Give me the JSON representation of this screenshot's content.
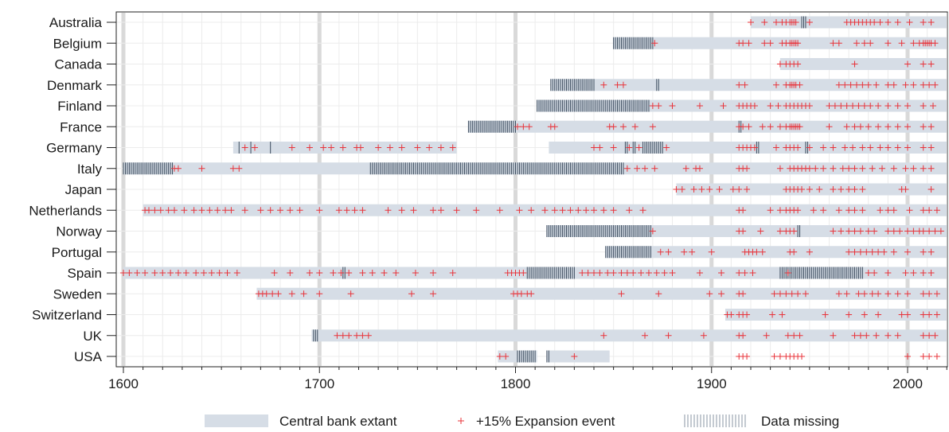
{
  "chart_data": {
    "type": "timeline",
    "title": "",
    "xlabel": "",
    "ylabel": "",
    "xlim": [
      1598,
      2022
    ],
    "x_ticks": [
      1600,
      1700,
      1800,
      1900,
      2000
    ],
    "grid": true,
    "legend_position": "bottom",
    "legend": {
      "extant": "Central bank extant",
      "expansion": "+15% Expansion event",
      "missing": "Data missing"
    },
    "colors": {
      "extant": "#d6dde6",
      "expansion": "#e8333a",
      "missing": "#3a4a5c",
      "century_line": "#d9d9d9",
      "grid": "#ececec"
    },
    "countries": [
      {
        "name": "Australia",
        "extant": [
          [
            1920,
            2022
          ]
        ],
        "missing": [
          [
            1946,
            1948
          ]
        ],
        "expansion_years": [
          1920,
          1927,
          1933,
          1936,
          1938,
          1940,
          1941,
          1942,
          1943,
          1950,
          1969,
          1971,
          1973,
          1975,
          1977,
          1979,
          1981,
          1983,
          1986,
          1990,
          1995,
          2001,
          2008,
          2012,
          2020
        ]
      },
      {
        "name": "Belgium",
        "extant": [
          [
            1850,
            2022
          ]
        ],
        "missing": [
          [
            1850,
            1870
          ]
        ],
        "expansion_years": [
          1871,
          1914,
          1916,
          1919,
          1927,
          1930,
          1936,
          1938,
          1940,
          1941,
          1942,
          1943,
          1944,
          1962,
          1965,
          1974,
          1978,
          1981,
          1990,
          1997,
          2003,
          2006,
          2008,
          2009,
          2010,
          2011,
          2012,
          2014,
          2020
        ]
      },
      {
        "name": "Canada",
        "extant": [
          [
            1935,
            2022
          ]
        ],
        "missing": [],
        "expansion_years": [
          1935,
          1938,
          1940,
          1942,
          1944,
          1973,
          2000,
          2008,
          2012,
          2020
        ]
      },
      {
        "name": "Denmark",
        "extant": [
          [
            1818,
            2022
          ]
        ],
        "missing": [
          [
            1818,
            1840
          ],
          [
            1872,
            1873
          ]
        ],
        "expansion_years": [
          1845,
          1852,
          1855,
          1914,
          1917,
          1933,
          1938,
          1940,
          1941,
          1942,
          1943,
          1945,
          1965,
          1968,
          1971,
          1974,
          1977,
          1980,
          1984,
          1990,
          1993,
          1999,
          2003,
          2008,
          2011,
          2014,
          2020
        ]
      },
      {
        "name": "Finland",
        "extant": [
          [
            1811,
            2022
          ]
        ],
        "missing": [
          [
            1811,
            1868
          ]
        ],
        "expansion_years": [
          1870,
          1873,
          1880,
          1894,
          1906,
          1914,
          1916,
          1918,
          1920,
          1922,
          1930,
          1934,
          1938,
          1940,
          1942,
          1944,
          1946,
          1948,
          1950,
          1960,
          1963,
          1966,
          1969,
          1972,
          1975,
          1978,
          1981,
          1985,
          1990,
          1995,
          2000,
          2008,
          2013,
          2020
        ]
      },
      {
        "name": "France",
        "extant": [
          [
            1776,
            2022
          ]
        ],
        "missing": [
          [
            1776,
            1800
          ],
          [
            1914,
            1915
          ]
        ],
        "expansion_years": [
          1801,
          1804,
          1807,
          1818,
          1820,
          1848,
          1850,
          1855,
          1861,
          1870,
          1914,
          1916,
          1919,
          1926,
          1930,
          1935,
          1938,
          1940,
          1941,
          1942,
          1943,
          1944,
          1945,
          1960,
          1969,
          1973,
          1976,
          1980,
          1985,
          1990,
          1995,
          2000,
          2008,
          2012,
          2020
        ]
      },
      {
        "name": "Germany",
        "extant": [
          [
            1656,
            1770
          ],
          [
            1817,
            2022
          ]
        ],
        "missing": [
          [
            1659,
            1659
          ],
          [
            1665,
            1665
          ],
          [
            1675,
            1675
          ],
          [
            1856,
            1857
          ],
          [
            1860,
            1861
          ],
          [
            1865,
            1875
          ],
          [
            1923,
            1924
          ],
          [
            1948,
            1949
          ]
        ],
        "expansion_years": [
          1662,
          1667,
          1686,
          1695,
          1702,
          1706,
          1712,
          1719,
          1721,
          1730,
          1736,
          1742,
          1750,
          1756,
          1762,
          1768,
          1840,
          1843,
          1850,
          1858,
          1863,
          1877,
          1914,
          1916,
          1918,
          1920,
          1922,
          1933,
          1938,
          1940,
          1942,
          1944,
          1950,
          1957,
          1962,
          1968,
          1972,
          1977,
          1981,
          1986,
          1990,
          1995,
          2000,
          2008,
          2012,
          2020
        ]
      },
      {
        "name": "Italy",
        "extant": [
          [
            1600,
            2022
          ]
        ],
        "missing": [
          [
            1600,
            1625
          ],
          [
            1726,
            1855
          ]
        ],
        "expansion_years": [
          1626,
          1628,
          1640,
          1656,
          1659,
          1857,
          1862,
          1866,
          1871,
          1887,
          1892,
          1894,
          1914,
          1916,
          1918,
          1935,
          1940,
          1942,
          1944,
          1946,
          1948,
          1950,
          1953,
          1957,
          1962,
          1967,
          1970,
          1973,
          1977,
          1982,
          1987,
          1993,
          1999,
          2003,
          2008,
          2012,
          2020
        ]
      },
      {
        "name": "Japan",
        "extant": [
          [
            1882,
            2022
          ]
        ],
        "missing": [],
        "expansion_years": [
          1882,
          1885,
          1891,
          1895,
          1899,
          1904,
          1911,
          1914,
          1918,
          1938,
          1940,
          1942,
          1944,
          1946,
          1950,
          1955,
          1962,
          1966,
          1970,
          1973,
          1977,
          1997,
          1999,
          2012,
          2020
        ]
      },
      {
        "name": "Netherlands",
        "extant": [
          [
            1610,
            2022
          ]
        ],
        "missing": [],
        "expansion_years": [
          1611,
          1613,
          1616,
          1619,
          1623,
          1626,
          1631,
          1636,
          1640,
          1644,
          1648,
          1652,
          1655,
          1662,
          1670,
          1675,
          1680,
          1685,
          1690,
          1700,
          1710,
          1714,
          1718,
          1722,
          1735,
          1742,
          1748,
          1758,
          1762,
          1770,
          1780,
          1792,
          1802,
          1808,
          1815,
          1820,
          1824,
          1828,
          1832,
          1836,
          1840,
          1845,
          1850,
          1858,
          1865,
          1914,
          1916,
          1930,
          1935,
          1938,
          1940,
          1942,
          1944,
          1952,
          1957,
          1965,
          1970,
          1973,
          1977,
          1986,
          1990,
          1993,
          2001,
          2008,
          2011,
          2015,
          2020
        ]
      },
      {
        "name": "Norway",
        "extant": [
          [
            1816,
            2022
          ]
        ],
        "missing": [
          [
            1816,
            1869
          ],
          [
            1944,
            1945
          ]
        ],
        "expansion_years": [
          1870,
          1914,
          1916,
          1925,
          1935,
          1938,
          1940,
          1942,
          1962,
          1966,
          1970,
          1973,
          1976,
          1980,
          1983,
          1990,
          1993,
          1996,
          2000,
          2003,
          2006,
          2008,
          2011,
          2014,
          2017,
          2020
        ]
      },
      {
        "name": "Portugal",
        "extant": [
          [
            1846,
            2022
          ]
        ],
        "missing": [
          [
            1846,
            1869
          ]
        ],
        "expansion_years": [
          1874,
          1878,
          1886,
          1890,
          1900,
          1917,
          1919,
          1921,
          1923,
          1926,
          1940,
          1942,
          1950,
          1970,
          1973,
          1976,
          1979,
          1982,
          1985,
          1988,
          1993,
          2000,
          2008,
          2012,
          2020
        ]
      },
      {
        "name": "Spain",
        "extant": [
          [
            1600,
            2022
          ]
        ],
        "missing": [
          [
            1712,
            1713
          ],
          [
            1806,
            1830
          ],
          [
            1935,
            1977
          ]
        ],
        "expansion_years": [
          1600,
          1603,
          1607,
          1611,
          1616,
          1620,
          1624,
          1628,
          1632,
          1637,
          1641,
          1645,
          1649,
          1653,
          1658,
          1677,
          1685,
          1695,
          1700,
          1707,
          1711,
          1715,
          1722,
          1727,
          1733,
          1739,
          1749,
          1758,
          1768,
          1796,
          1798,
          1800,
          1802,
          1804,
          1834,
          1837,
          1840,
          1843,
          1847,
          1850,
          1854,
          1857,
          1860,
          1864,
          1868,
          1872,
          1876,
          1880,
          1894,
          1905,
          1914,
          1917,
          1921,
          1939,
          1980,
          1983,
          1990,
          1999,
          2003,
          2008,
          2012,
          2020
        ]
      },
      {
        "name": "Sweden",
        "extant": [
          [
            1668,
            2022
          ]
        ],
        "missing": [],
        "expansion_years": [
          1669,
          1671,
          1673,
          1676,
          1679,
          1686,
          1692,
          1700,
          1716,
          1747,
          1758,
          1799,
          1801,
          1803,
          1806,
          1808,
          1854,
          1873,
          1899,
          1905,
          1914,
          1916,
          1932,
          1935,
          1938,
          1941,
          1944,
          1948,
          1965,
          1969,
          1975,
          1978,
          1982,
          1985,
          1990,
          1995,
          2000,
          2008,
          2011,
          2015,
          2020
        ]
      },
      {
        "name": "Switzerland",
        "extant": [
          [
            1907,
            2022
          ]
        ],
        "missing": [],
        "expansion_years": [
          1908,
          1910,
          1914,
          1916,
          1918,
          1931,
          1936,
          1958,
          1970,
          1978,
          1985,
          1997,
          2000,
          2008,
          2011,
          2015,
          2020
        ]
      },
      {
        "name": "UK",
        "extant": [
          [
            1696,
            2022
          ]
        ],
        "missing": [
          [
            1697,
            1699
          ]
        ],
        "expansion_years": [
          1709,
          1712,
          1715,
          1719,
          1722,
          1725,
          1845,
          1866,
          1878,
          1896,
          1914,
          1916,
          1928,
          1939,
          1942,
          1945,
          1962,
          1973,
          1976,
          1979,
          1984,
          1990,
          1995,
          2008,
          2011,
          2014,
          2020
        ]
      },
      {
        "name": "USA",
        "extant": [
          [
            1791,
            1811
          ],
          [
            1816,
            1848
          ]
        ],
        "missing": [
          [
            1801,
            1810
          ],
          [
            1816,
            1817
          ]
        ],
        "expansion_years": [
          1792,
          1795,
          1830,
          1914,
          1916,
          1918,
          1932,
          1935,
          1938,
          1940,
          1942,
          1944,
          1946,
          2000,
          2008,
          2011,
          2015,
          2020
        ]
      }
    ]
  }
}
